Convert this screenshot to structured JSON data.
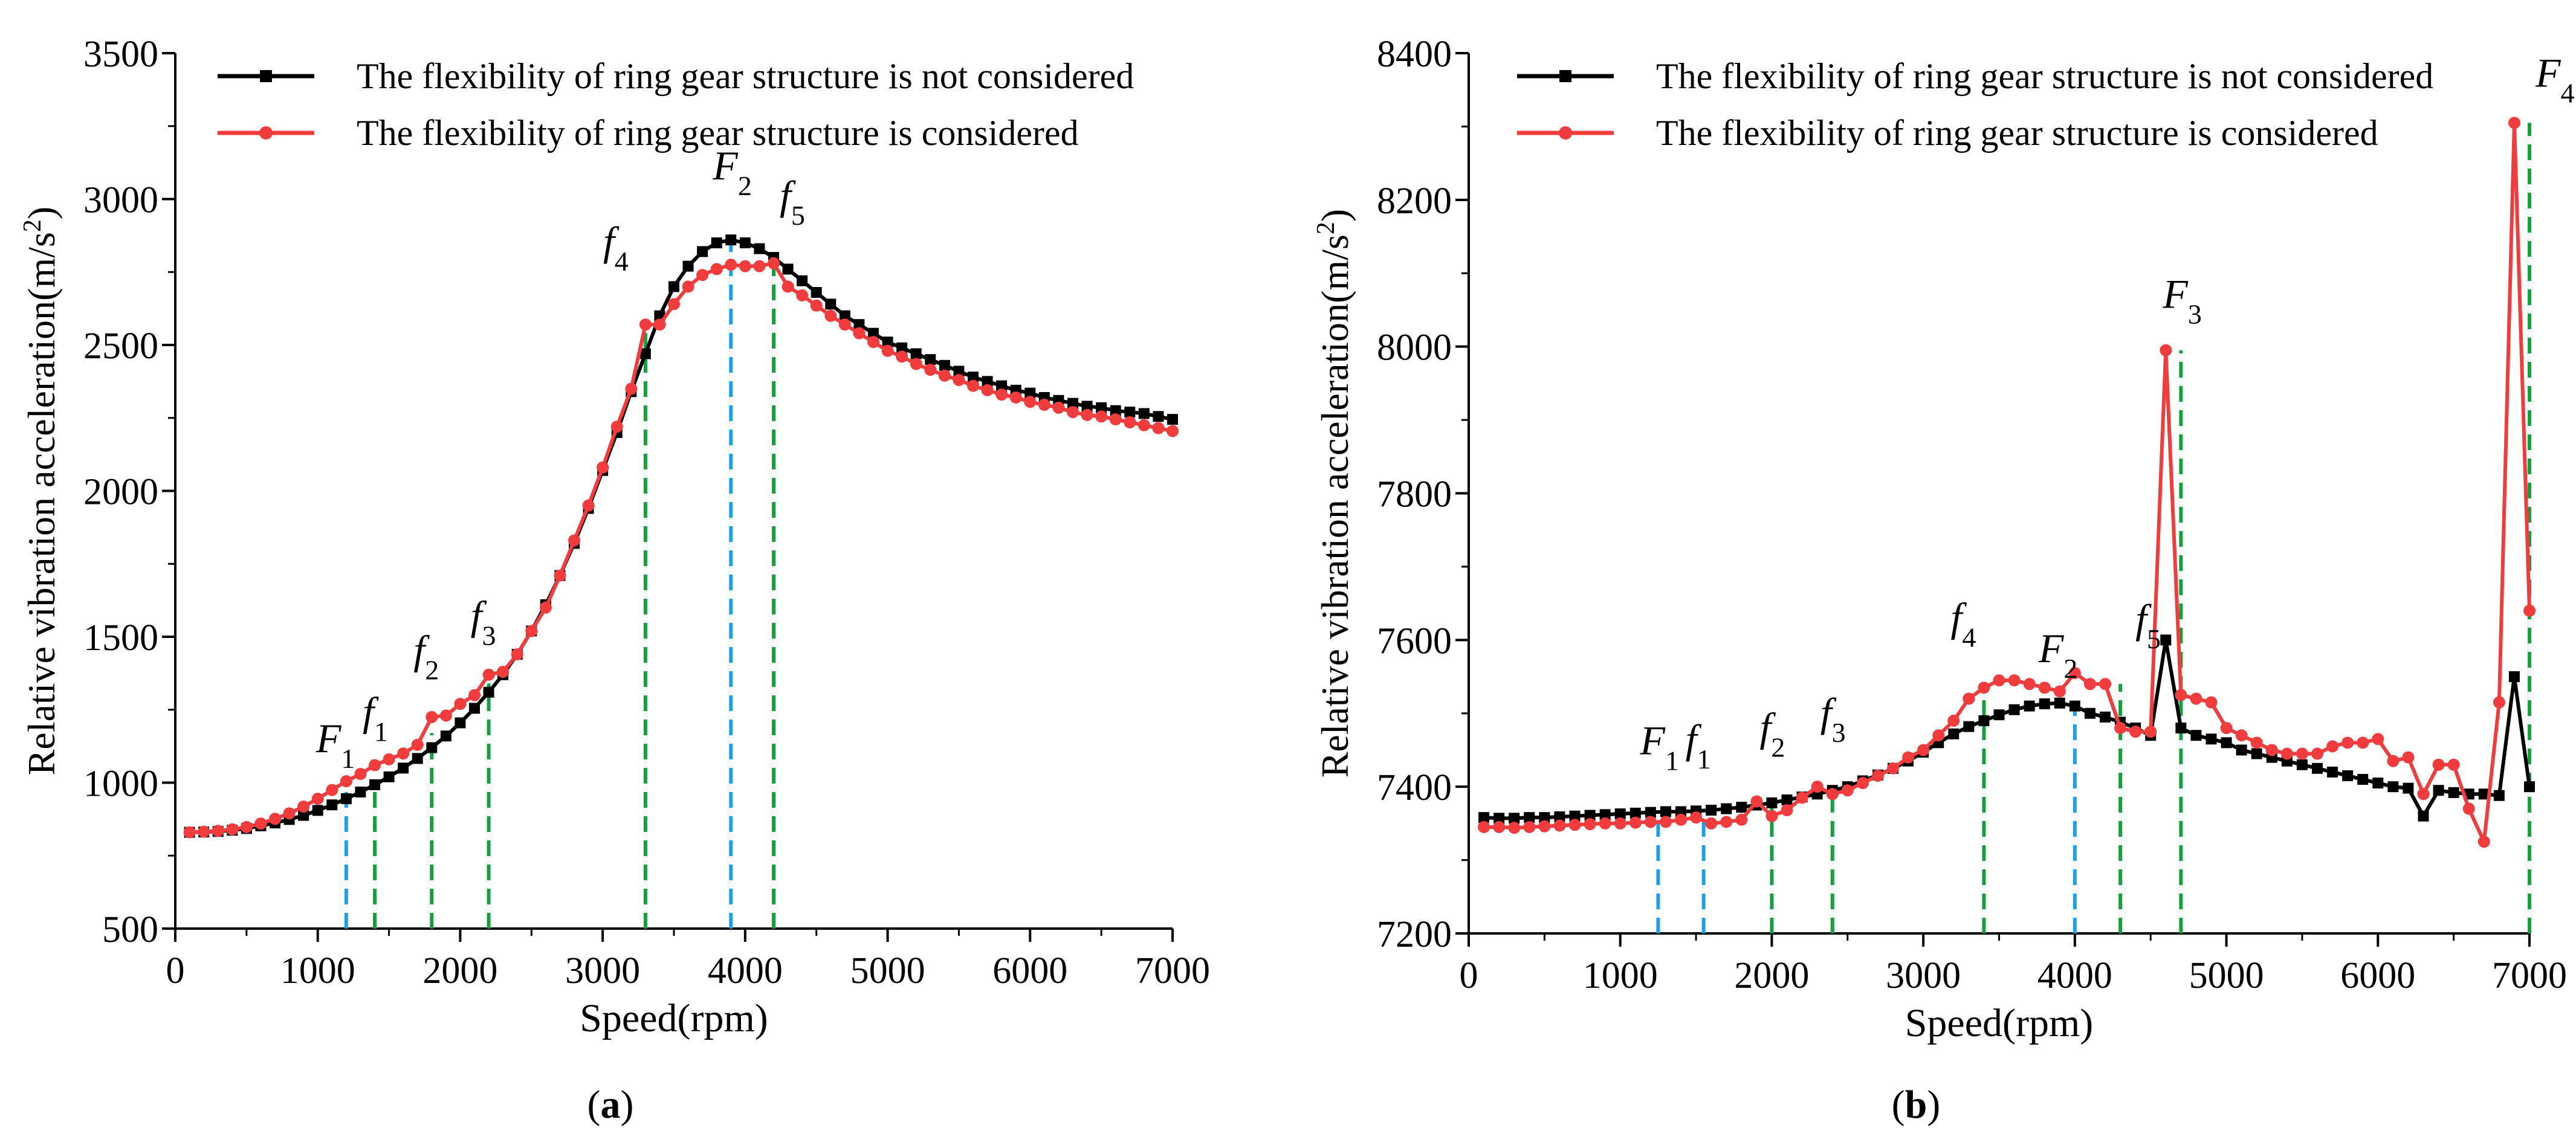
{
  "colors": {
    "black_series": "#000000",
    "red_series": "#f03c3c",
    "blue_marker": "#1ea0e6",
    "green_marker": "#14a03c",
    "axis": "#000000"
  },
  "chart_data": [
    {
      "id": "a",
      "type": "line",
      "caption": "(a)",
      "caption_open": "(",
      "caption_letter": "a",
      "caption_close": ")",
      "xlabel": "Speed(rpm)",
      "ylabel": "Relative vibration acceleration(m/s²)",
      "ylabel_base": "Relative vibration acceleration(m/s",
      "ylabel_sup": "2",
      "ylabel_close": ")",
      "xlim": [
        0,
        7000
      ],
      "ylim": [
        500,
        3500
      ],
      "xticks": [
        "0",
        "1000",
        "2000",
        "3000",
        "4000",
        "5000",
        "6000",
        "7000"
      ],
      "yticks": [
        "500",
        "1000",
        "1500",
        "2000",
        "2500",
        "3000",
        "3500"
      ],
      "legend_position": "top-left",
      "series": [
        {
          "name": "The flexibility of ring gear structure is not considered",
          "color": "#000000",
          "marker": "square",
          "x": [
            100,
            200,
            300,
            400,
            500,
            600,
            700,
            800,
            900,
            1000,
            1100,
            1200,
            1300,
            1400,
            1500,
            1600,
            1700,
            1800,
            1900,
            2000,
            2100,
            2200,
            2300,
            2400,
            2500,
            2600,
            2700,
            2800,
            2900,
            3000,
            3100,
            3200,
            3300,
            3400,
            3500,
            3600,
            3700,
            3800,
            3900,
            4000,
            4100,
            4200,
            4300,
            4400,
            4500,
            4600,
            4700,
            4800,
            4900,
            5000,
            5100,
            5200,
            5300,
            5400,
            5500,
            5600,
            5700,
            5800,
            5900,
            6000,
            6100,
            6200,
            6300,
            6400,
            6500,
            6600,
            6700,
            6800,
            6900,
            7000
          ],
          "y": [
            830,
            831,
            833,
            837,
            843,
            852,
            862,
            874,
            888,
            905,
            924,
            945,
            968,
            993,
            1020,
            1050,
            1083,
            1120,
            1160,
            1205,
            1255,
            1310,
            1370,
            1440,
            1520,
            1610,
            1710,
            1820,
            1940,
            2070,
            2200,
            2340,
            2470,
            2600,
            2700,
            2770,
            2820,
            2850,
            2860,
            2850,
            2830,
            2800,
            2760,
            2720,
            2680,
            2640,
            2600,
            2570,
            2540,
            2510,
            2490,
            2470,
            2450,
            2430,
            2410,
            2390,
            2375,
            2360,
            2345,
            2335,
            2320,
            2310,
            2300,
            2290,
            2285,
            2275,
            2270,
            2265,
            2255,
            2245
          ]
        },
        {
          "name": "The flexibility of ring gear structure is considered",
          "color": "#f03c3c",
          "marker": "circle",
          "x": [
            100,
            200,
            300,
            400,
            500,
            600,
            700,
            800,
            900,
            1000,
            1100,
            1200,
            1300,
            1400,
            1500,
            1600,
            1700,
            1800,
            1900,
            2000,
            2100,
            2200,
            2300,
            2400,
            2500,
            2600,
            2700,
            2800,
            2900,
            3000,
            3100,
            3200,
            3300,
            3400,
            3500,
            3600,
            3700,
            3800,
            3900,
            4000,
            4100,
            4200,
            4300,
            4400,
            4500,
            4600,
            4700,
            4800,
            4900,
            5000,
            5100,
            5200,
            5300,
            5400,
            5500,
            5600,
            5700,
            5800,
            5900,
            6000,
            6100,
            6200,
            6300,
            6400,
            6500,
            6600,
            6700,
            6800,
            6900,
            7000
          ],
          "y": [
            830,
            832,
            835,
            840,
            848,
            860,
            876,
            895,
            918,
            945,
            975,
            1005,
            1030,
            1060,
            1080,
            1100,
            1130,
            1225,
            1230,
            1270,
            1300,
            1370,
            1380,
            1440,
            1520,
            1600,
            1710,
            1830,
            1950,
            2080,
            2220,
            2350,
            2570,
            2570,
            2640,
            2700,
            2740,
            2760,
            2775,
            2770,
            2770,
            2780,
            2700,
            2670,
            2635,
            2600,
            2570,
            2540,
            2510,
            2480,
            2460,
            2435,
            2415,
            2395,
            2380,
            2360,
            2345,
            2330,
            2320,
            2305,
            2295,
            2285,
            2270,
            2260,
            2255,
            2245,
            2235,
            2225,
            2215,
            2205
          ]
        }
      ],
      "markers": [
        {
          "label": "F",
          "sub": "1",
          "x": 1200,
          "y": 980,
          "style": "blue"
        },
        {
          "label": "f",
          "sub": "1",
          "x": 1400,
          "y": 1000,
          "style": "green"
        },
        {
          "label": "f",
          "sub": "2",
          "x": 1800,
          "y": 1170,
          "style": "green"
        },
        {
          "label": "f",
          "sub": "3",
          "x": 2200,
          "y": 1340,
          "style": "green"
        },
        {
          "label": "f",
          "sub": "4",
          "x": 3300,
          "y": 2570,
          "style": "green"
        },
        {
          "label": "F",
          "sub": "2",
          "x": 3900,
          "y": 2860,
          "style": "blue"
        },
        {
          "label": "f",
          "sub": "5",
          "x": 4200,
          "y": 2800,
          "style": "green"
        }
      ]
    },
    {
      "id": "b",
      "type": "line",
      "caption": "(b)",
      "caption_open": "(",
      "caption_letter": "b",
      "caption_close": ")",
      "xlabel": "Speed(rpm)",
      "ylabel": "Relative vibration acceleration(m/s²)",
      "ylabel_base": "Relative vibration acceleration(m/s",
      "ylabel_sup": "2",
      "ylabel_close": ")",
      "xlim": [
        0,
        7000
      ],
      "ylim": [
        7200,
        8400
      ],
      "xticks": [
        "0",
        "1000",
        "2000",
        "3000",
        "4000",
        "5000",
        "6000",
        "7000"
      ],
      "yticks": [
        "7200",
        "7400",
        "7600",
        "7800",
        "8000",
        "8200",
        "8400"
      ],
      "legend_position": "top-left",
      "series": [
        {
          "name": "The flexibility of ring gear structure is not considered",
          "color": "#000000",
          "marker": "square",
          "x": [
            100,
            200,
            300,
            400,
            500,
            600,
            700,
            800,
            900,
            1000,
            1100,
            1200,
            1300,
            1400,
            1500,
            1600,
            1700,
            1800,
            1900,
            2000,
            2100,
            2200,
            2300,
            2400,
            2500,
            2600,
            2700,
            2800,
            2900,
            3000,
            3100,
            3200,
            3300,
            3400,
            3500,
            3600,
            3700,
            3800,
            3900,
            4000,
            4100,
            4200,
            4300,
            4400,
            4500,
            4600,
            4700,
            4800,
            4900,
            5000,
            5100,
            5200,
            5300,
            5400,
            5500,
            5600,
            5700,
            5800,
            5900,
            6000,
            6100,
            6200,
            6300,
            6400,
            6500,
            6600,
            6700,
            6800,
            6900,
            7000
          ],
          "y": [
            7358,
            7357,
            7357,
            7358,
            7358,
            7359,
            7360,
            7361,
            7362,
            7363,
            7364,
            7365,
            7366,
            7366,
            7367,
            7368,
            7370,
            7372,
            7375,
            7378,
            7382,
            7386,
            7390,
            7395,
            7400,
            7408,
            7416,
            7425,
            7435,
            7447,
            7460,
            7472,
            7482,
            7490,
            7498,
            7505,
            7510,
            7513,
            7514,
            7510,
            7500,
            7495,
            7488,
            7480,
            7470,
            7600,
            7480,
            7470,
            7465,
            7460,
            7450,
            7445,
            7440,
            7435,
            7430,
            7425,
            7420,
            7415,
            7410,
            7405,
            7400,
            7398,
            7360,
            7395,
            7392,
            7390,
            7390,
            7388,
            7550,
            7400
          ]
        },
        {
          "name": "The flexibility of ring gear structure is considered",
          "color": "#f03c3c",
          "marker": "circle",
          "x": [
            100,
            200,
            300,
            400,
            500,
            600,
            700,
            800,
            900,
            1000,
            1100,
            1200,
            1300,
            1400,
            1500,
            1600,
            1700,
            1800,
            1900,
            2000,
            2100,
            2200,
            2300,
            2400,
            2500,
            2600,
            2700,
            2800,
            2900,
            3000,
            3100,
            3200,
            3300,
            3400,
            3500,
            3600,
            3700,
            3800,
            3900,
            4000,
            4100,
            4200,
            4300,
            4400,
            4500,
            4600,
            4700,
            4800,
            4900,
            5000,
            5100,
            5200,
            5300,
            5400,
            5500,
            5600,
            5700,
            5800,
            5900,
            6000,
            6100,
            6200,
            6300,
            6400,
            6500,
            6600,
            6700,
            6800,
            6900,
            7000
          ],
          "y": [
            7345,
            7345,
            7344,
            7345,
            7346,
            7347,
            7348,
            7349,
            7350,
            7350,
            7351,
            7352,
            7352,
            7355,
            7358,
            7350,
            7352,
            7355,
            7380,
            7360,
            7368,
            7385,
            7400,
            7390,
            7395,
            7405,
            7415,
            7425,
            7440,
            7450,
            7470,
            7490,
            7520,
            7535,
            7545,
            7545,
            7540,
            7535,
            7530,
            7555,
            7540,
            7540,
            7480,
            7475,
            7475,
            7995,
            7525,
            7520,
            7515,
            7480,
            7470,
            7460,
            7450,
            7445,
            7445,
            7445,
            7455,
            7460,
            7460,
            7465,
            7435,
            7440,
            7390,
            7430,
            7430,
            7370,
            7325,
            7515,
            8305,
            7640
          ]
        }
      ],
      "markers": [
        {
          "label": "F",
          "sub": "1",
          "x": 1250,
          "y": 7366,
          "style": "blue"
        },
        {
          "label": "f",
          "sub": "1",
          "x": 1550,
          "y": 7368,
          "style": "blue"
        },
        {
          "label": "f",
          "sub": "2",
          "x": 2000,
          "y": 7380,
          "style": "green"
        },
        {
          "label": "f",
          "sub": "3",
          "x": 2400,
          "y": 7400,
          "style": "green"
        },
        {
          "label": "f",
          "sub": "4",
          "x": 3400,
          "y": 7530,
          "style": "green"
        },
        {
          "label": "F",
          "sub": "2",
          "x": 4000,
          "y": 7512,
          "style": "blue"
        },
        {
          "label": "f",
          "sub": "5",
          "x": 4300,
          "y": 7540,
          "style": "green"
        },
        {
          "label": "F",
          "sub": "3",
          "x": 4700,
          "y": 7995,
          "style": "green"
        },
        {
          "label": "F",
          "sub": "4",
          "x": 7000,
          "y": 8305,
          "style": "green"
        }
      ]
    }
  ]
}
